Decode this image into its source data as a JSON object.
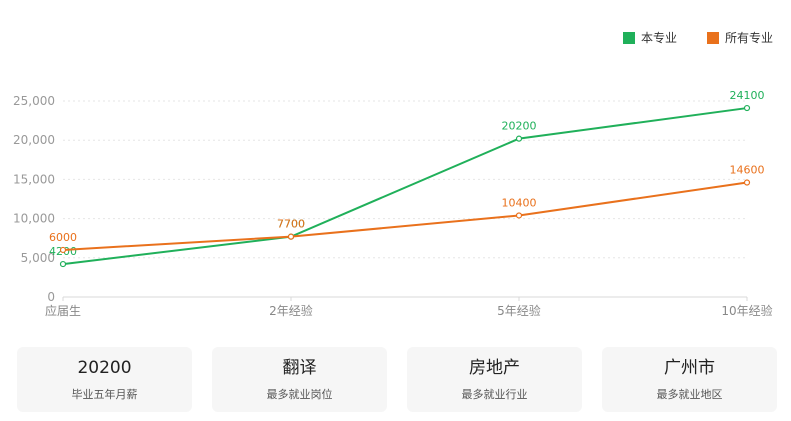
{
  "chart_data": {
    "type": "line",
    "categories": [
      "应届生",
      "2年经验",
      "5年经验",
      "10年经验"
    ],
    "series": [
      {
        "name": "本专业",
        "values": [
          4200,
          7700,
          20200,
          24100
        ],
        "color": "#20b05a"
      },
      {
        "name": "所有专业",
        "values": [
          6000,
          7700,
          10400,
          14600
        ],
        "color": "#e9711c"
      }
    ],
    "yticks": [
      "0",
      "5,000",
      "10,000",
      "15,000",
      "20,000",
      "25,000"
    ],
    "ylim": [
      0,
      25000
    ],
    "grid": true,
    "legend_position": "top-right"
  },
  "legend": {
    "items": [
      {
        "label": "本专业",
        "color": "#20b05a"
      },
      {
        "label": "所有专业",
        "color": "#e9711c"
      }
    ]
  },
  "cards": [
    {
      "value": "20200",
      "label": "毕业五年月薪"
    },
    {
      "value": "翻译",
      "label": "最多就业岗位"
    },
    {
      "value": "房地产",
      "label": "最多就业行业"
    },
    {
      "value": "广州市",
      "label": "最多就业地区"
    }
  ]
}
